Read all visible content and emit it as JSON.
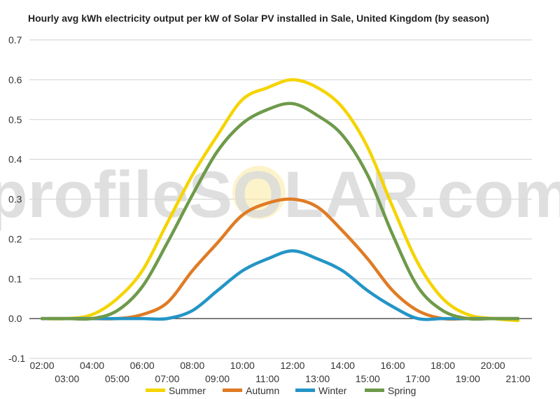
{
  "chart_data": {
    "type": "line",
    "title": "Hourly avg kWh electricity output per kW of Solar PV installed in Sale, United Kingdom (by season)",
    "xlabel": "",
    "ylabel": "",
    "ylim": [
      -0.1,
      0.7
    ],
    "yticks": [
      -0.1,
      0.0,
      0.1,
      0.2,
      0.3,
      0.4,
      0.5,
      0.6,
      0.7
    ],
    "ytick_labels": [
      "-0.1",
      "0.0",
      "0.1",
      "0.2",
      "0.3",
      "0.4",
      "0.5",
      "0.6",
      "0.7"
    ],
    "x": [
      "02:00",
      "03:00",
      "04:00",
      "05:00",
      "06:00",
      "07:00",
      "08:00",
      "09:00",
      "10:00",
      "11:00",
      "12:00",
      "13:00",
      "14:00",
      "15:00",
      "16:00",
      "17:00",
      "18:00",
      "19:00",
      "20:00",
      "21:00"
    ],
    "grid": true,
    "legend_position": "bottom",
    "series": [
      {
        "name": "Summer",
        "color": "#f5d400",
        "values": [
          0.0,
          0.0,
          0.01,
          0.05,
          0.12,
          0.24,
          0.36,
          0.46,
          0.55,
          0.58,
          0.6,
          0.58,
          0.53,
          0.43,
          0.28,
          0.14,
          0.05,
          0.01,
          0.0,
          -0.005
        ]
      },
      {
        "name": "Autumn",
        "color": "#e07b24",
        "values": [
          0.0,
          0.0,
          0.0,
          0.0,
          0.01,
          0.04,
          0.12,
          0.19,
          0.26,
          0.29,
          0.3,
          0.28,
          0.22,
          0.15,
          0.07,
          0.02,
          0.0,
          0.0,
          0.0,
          0.0
        ]
      },
      {
        "name": "Winter",
        "color": "#2495c6",
        "values": [
          0.0,
          0.0,
          0.0,
          0.0,
          0.0,
          0.0,
          0.02,
          0.07,
          0.12,
          0.15,
          0.17,
          0.15,
          0.12,
          0.07,
          0.03,
          0.0,
          0.0,
          0.0,
          0.0,
          0.0
        ]
      },
      {
        "name": "Spring",
        "color": "#6e9a4a",
        "values": [
          0.0,
          0.0,
          0.0,
          0.02,
          0.08,
          0.19,
          0.31,
          0.42,
          0.49,
          0.525,
          0.54,
          0.51,
          0.46,
          0.36,
          0.21,
          0.08,
          0.02,
          0.0,
          0.0,
          0.0
        ]
      }
    ]
  },
  "watermark": {
    "text": "profileSOLAR.com"
  }
}
